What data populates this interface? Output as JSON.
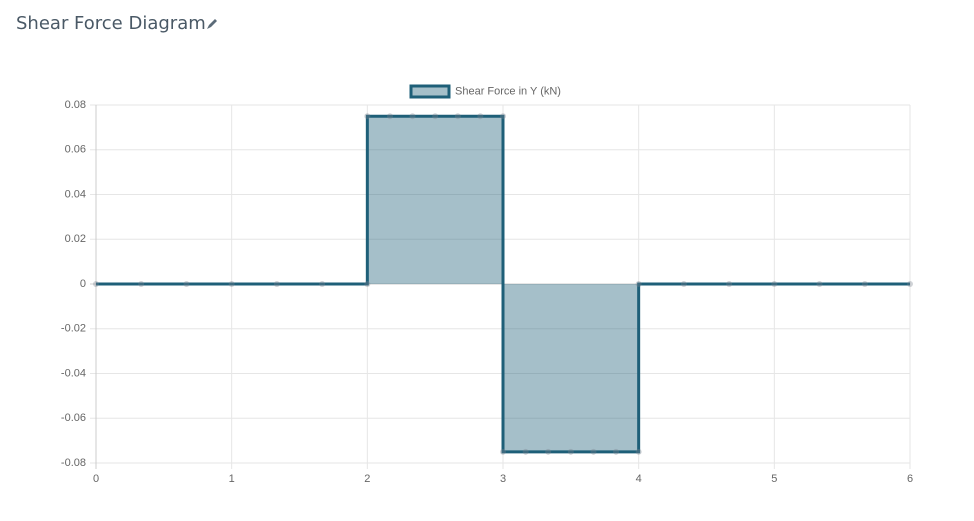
{
  "chart_data": {
    "type": "line",
    "title": "Shear Force Diagram",
    "x": [
      0,
      0.333,
      0.667,
      1,
      1.333,
      1.667,
      2,
      2,
      2.167,
      2.333,
      2.5,
      2.667,
      2.833,
      3,
      3,
      3.167,
      3.333,
      3.5,
      3.667,
      3.833,
      4,
      4,
      4.333,
      4.667,
      5,
      5.333,
      5.667,
      6
    ],
    "series": [
      {
        "name": "Shear Force in Y (kN)",
        "color": "#1e5f78",
        "fill_color": "rgba(30,95,120,0.4)",
        "values": [
          0,
          0,
          0,
          0,
          0,
          0,
          0,
          0.075,
          0.075,
          0.075,
          0.075,
          0.075,
          0.075,
          0.075,
          -0.075,
          -0.075,
          -0.075,
          -0.075,
          -0.075,
          -0.075,
          -0.075,
          0,
          0,
          0,
          0,
          0,
          0,
          0
        ]
      }
    ],
    "xlim": [
      0,
      6
    ],
    "xticks": [
      0,
      1,
      2,
      3,
      4,
      5,
      6
    ],
    "ylim": [
      -0.08,
      0.08
    ],
    "yticks": [
      -0.08,
      -0.06,
      -0.04,
      -0.02,
      0,
      0.02,
      0.04,
      0.06,
      0.08
    ],
    "grid": true,
    "legend": "top",
    "fill": true
  }
}
